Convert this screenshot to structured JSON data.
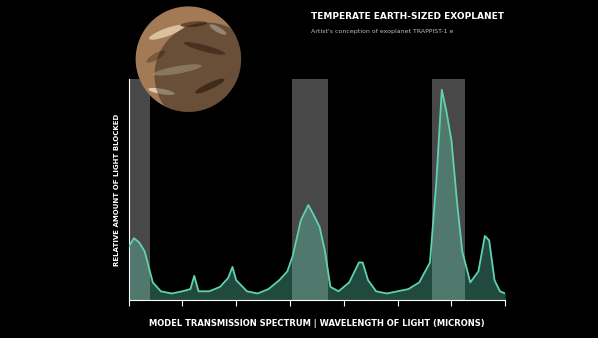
{
  "chart_data": {
    "type": "line",
    "title": "TEMPERATE EARTH-SIZED EXOPLANET",
    "subtitle": "Artist's conception of exoplanet TRAPPIST-1 e",
    "x_label": "MODEL TRANSMISSION SPECTRUM | WAVELENGTH OF LIGHT (MICRONS)",
    "y_label": "RELATIVE AMOUNT OF LIGHT BLOCKED",
    "x": [
      0,
      0.1,
      0.2,
      0.3,
      0.45,
      0.6,
      0.8,
      1.0,
      1.15,
      1.22,
      1.3,
      1.5,
      1.7,
      1.85,
      1.93,
      2.0,
      2.2,
      2.4,
      2.6,
      2.8,
      2.95,
      3.05,
      3.2,
      3.34,
      3.45,
      3.55,
      3.65,
      3.75,
      3.9,
      4.1,
      4.28,
      4.35,
      4.45,
      4.6,
      4.8,
      5.0,
      5.2,
      5.4,
      5.6,
      5.72,
      5.82,
      5.9,
      6.0,
      6.1,
      6.2,
      6.35,
      6.5,
      6.62,
      6.7,
      6.8,
      6.9,
      7.0
    ],
    "values": [
      0.24,
      0.28,
      0.26,
      0.22,
      0.08,
      0.04,
      0.03,
      0.04,
      0.05,
      0.11,
      0.04,
      0.04,
      0.06,
      0.1,
      0.15,
      0.09,
      0.04,
      0.03,
      0.05,
      0.09,
      0.13,
      0.2,
      0.36,
      0.43,
      0.38,
      0.33,
      0.22,
      0.06,
      0.04,
      0.08,
      0.17,
      0.17,
      0.09,
      0.04,
      0.03,
      0.04,
      0.05,
      0.08,
      0.17,
      0.54,
      0.95,
      0.86,
      0.72,
      0.45,
      0.22,
      0.08,
      0.13,
      0.29,
      0.27,
      0.09,
      0.04,
      0.03
    ],
    "bands": [
      [
        0,
        0.4
      ],
      [
        3.04,
        3.71
      ],
      [
        5.63,
        6.25
      ]
    ],
    "color": "#5fd3b0",
    "xlim": [
      0,
      7
    ],
    "xticks": [
      0,
      1,
      2,
      3,
      4,
      5,
      6,
      7
    ],
    "ylim": [
      0,
      1
    ],
    "tick_labels": false,
    "grid": false
  }
}
